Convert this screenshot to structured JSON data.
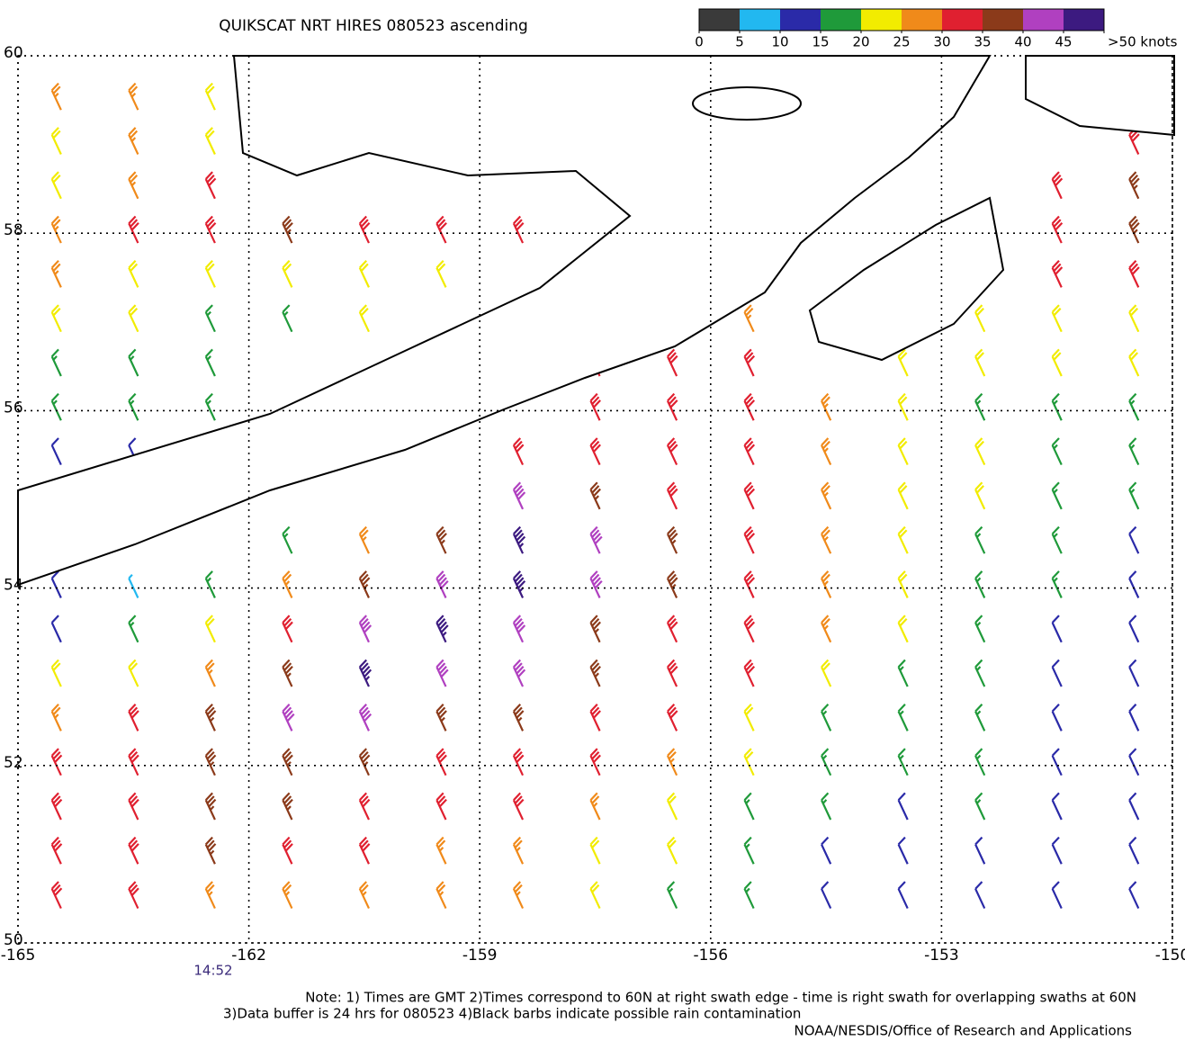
{
  "chart_data": {
    "type": "barbs",
    "title": "QUIKSCAT NRT HIRES 080523 ascending",
    "time_label": "14:52",
    "notes": [
      "Note: 1) Times are GMT 2)Times correspond to 60N at right swath edge - time is right swath for overlapping swaths at 60N",
      "3)Data buffer is 24 hrs for 080523 4)Black barbs indicate possible rain contamination"
    ],
    "credit": "NOAA/NESDIS/Office of Research and Applications",
    "xlim": [
      -165,
      -150
    ],
    "ylim": [
      50,
      60
    ],
    "xticks": [
      -165,
      -162,
      -159,
      -156,
      -153,
      -150
    ],
    "yticks": [
      50,
      52,
      54,
      56,
      58,
      60
    ],
    "grid": true,
    "colorbar": {
      "ticks": [
        0,
        5,
        10,
        15,
        20,
        25,
        30,
        35,
        40,
        45,
        {
          "value": 50,
          "label": ">50 knots"
        }
      ],
      "colors": [
        "#3a3a3a",
        "#22b8f0",
        "#2a2aa8",
        "#1f9a3a",
        "#f2ec00",
        "#f08a1a",
        "#e02030",
        "#8b3a1a",
        "#b040c0",
        "#3c1a80"
      ]
    },
    "lon": [
      -164.5,
      -163.5,
      -162.5,
      -161.5,
      -160.5,
      -159.5,
      -158.5,
      -157.5,
      -156.5,
      -155.5,
      -154.5,
      -153.5,
      -152.5,
      -151.5,
      -150.5
    ],
    "lat": [
      59.5,
      59,
      58.5,
      58,
      57.5,
      57,
      56.5,
      56,
      55.5,
      55,
      54.5,
      54,
      53.5,
      53,
      52.5,
      52,
      51.5,
      51,
      50.5
    ],
    "speed": [
      [
        25,
        28,
        22,
        null,
        null,
        null,
        null,
        null,
        null,
        null,
        null,
        null,
        null,
        null,
        null
      ],
      [
        22,
        28,
        22,
        null,
        null,
        null,
        null,
        null,
        null,
        null,
        null,
        null,
        null,
        null,
        30
      ],
      [
        22,
        28,
        32,
        null,
        null,
        null,
        null,
        null,
        null,
        null,
        null,
        null,
        null,
        32,
        35
      ],
      [
        28,
        33,
        33,
        38,
        33,
        33,
        33,
        null,
        null,
        null,
        null,
        null,
        null,
        30,
        35
      ],
      [
        27,
        23,
        23,
        24,
        22,
        20,
        null,
        null,
        null,
        null,
        null,
        null,
        null,
        32,
        33
      ],
      [
        20,
        22,
        18,
        18,
        20,
        null,
        null,
        null,
        28,
        28,
        null,
        null,
        22,
        24,
        23
      ],
      [
        17,
        16,
        17,
        null,
        null,
        null,
        null,
        33,
        30,
        33,
        null,
        22,
        22,
        23,
        22
      ],
      [
        15,
        16,
        17,
        null,
        null,
        null,
        null,
        32,
        33,
        32,
        25,
        22,
        18,
        17,
        17
      ],
      [
        12,
        12,
        null,
        null,
        null,
        null,
        33,
        33,
        33,
        32,
        28,
        22,
        22,
        18,
        17
      ],
      [
        null,
        null,
        null,
        null,
        null,
        null,
        40,
        35,
        33,
        30,
        28,
        24,
        20,
        18,
        16
      ],
      [
        null,
        null,
        null,
        18,
        27,
        35,
        45,
        42,
        35,
        30,
        28,
        22,
        19,
        15,
        14
      ],
      [
        12,
        8,
        17,
        27,
        35,
        42,
        47,
        42,
        35,
        33,
        28,
        23,
        18,
        17,
        14
      ],
      [
        12,
        16,
        22,
        33,
        40,
        46,
        42,
        37,
        34,
        33,
        25,
        22,
        17,
        14,
        13
      ],
      [
        22,
        24,
        28,
        36,
        45,
        42,
        41,
        35,
        34,
        30,
        23,
        19,
        17,
        14,
        13
      ],
      [
        28,
        33,
        36,
        40,
        44,
        37,
        35,
        34,
        30,
        24,
        19,
        18,
        17,
        14,
        12
      ],
      [
        33,
        34,
        36,
        37,
        36,
        34,
        33,
        30,
        25,
        22,
        18,
        17,
        17,
        13,
        12
      ],
      [
        33,
        34,
        35,
        36,
        34,
        33,
        30,
        28,
        23,
        19,
        17,
        14,
        16,
        13,
        11
      ],
      [
        33,
        34,
        35,
        33,
        30,
        29,
        27,
        24,
        21,
        17,
        14,
        13,
        13,
        12,
        11
      ],
      [
        32,
        30,
        29,
        28,
        26,
        27,
        25,
        23,
        19,
        16,
        13,
        13,
        12,
        11,
        10
      ]
    ]
  }
}
